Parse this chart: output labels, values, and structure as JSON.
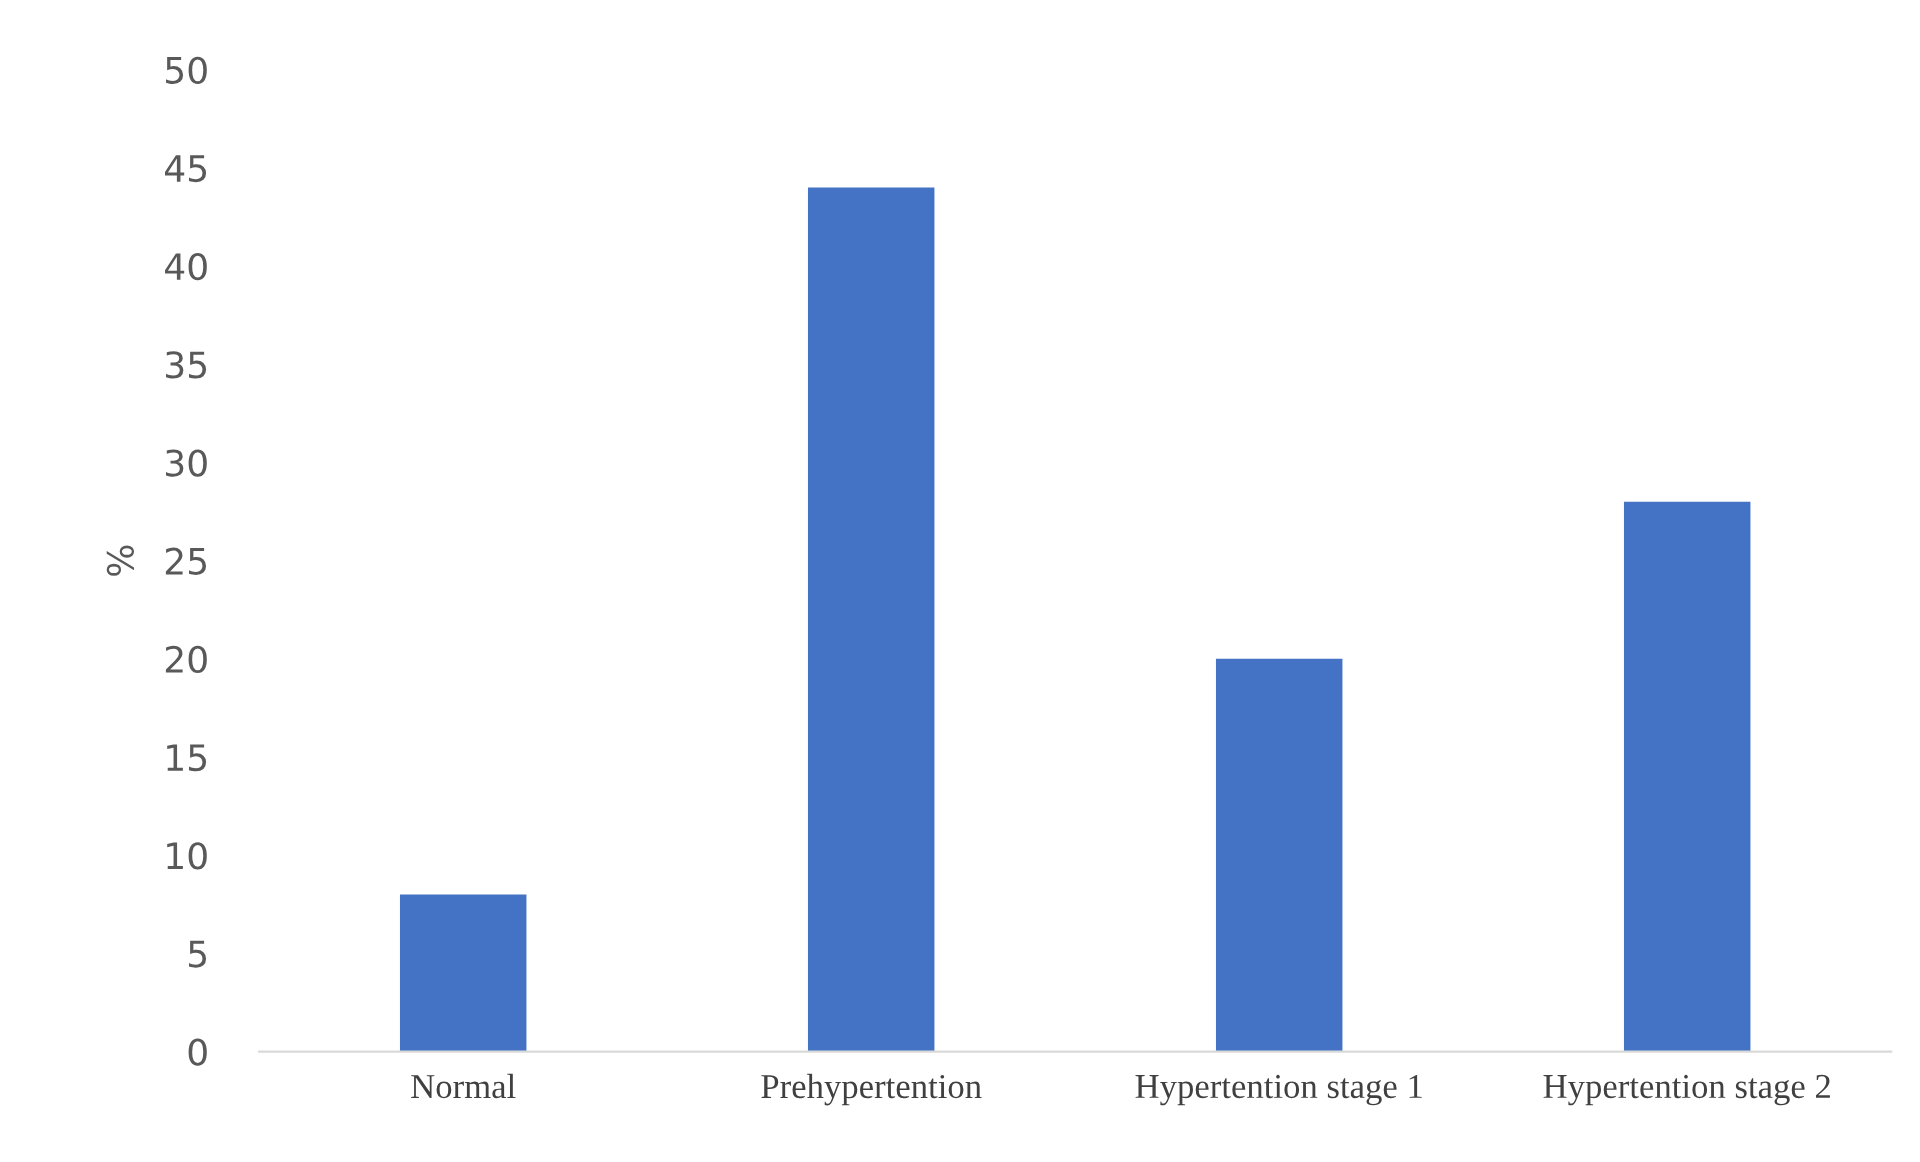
{
  "chart_data": {
    "type": "bar",
    "ylabel": "%",
    "categories": [
      "Normal",
      "Prehypertention",
      "Hypertention stage 1",
      "Hypertention stage 2"
    ],
    "values": [
      8,
      44,
      20,
      28
    ],
    "color": "#4472c4",
    "ylim": [
      0,
      50
    ],
    "yticks": [
      0,
      5,
      10,
      15,
      20,
      25,
      30,
      35,
      40,
      45,
      50
    ],
    "grid": false,
    "legend": false
  }
}
